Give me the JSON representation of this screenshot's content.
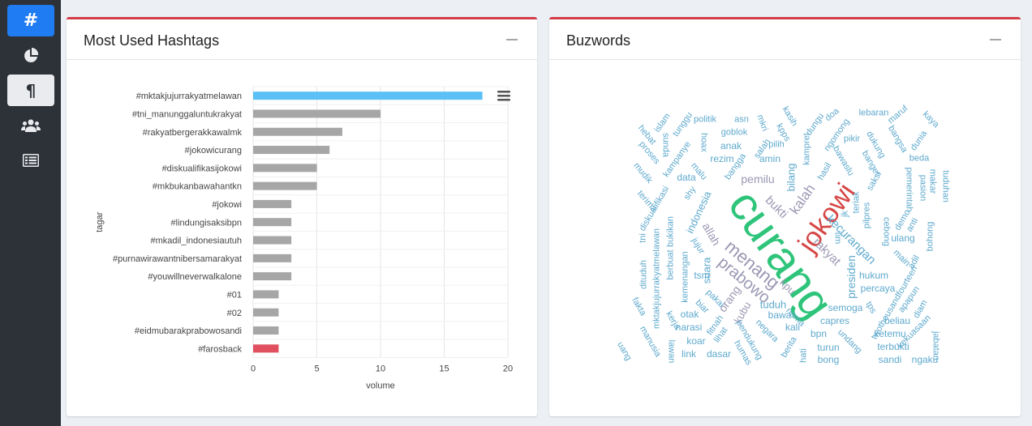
{
  "sidebar": {
    "items": [
      {
        "icon": "hashtag-icon",
        "label": "#",
        "state": "active"
      },
      {
        "icon": "pie-chart-icon",
        "state": "normal"
      },
      {
        "icon": "paragraph-icon",
        "label": "¶",
        "state": "selected"
      },
      {
        "icon": "users-icon",
        "state": "normal"
      },
      {
        "icon": "list-table-icon",
        "state": "normal"
      }
    ]
  },
  "hashtags_panel": {
    "title": "Most Used Hashtags"
  },
  "buzzwords_panel": {
    "title": "Buzwords"
  },
  "colors": {
    "bar_default": "#a7a6a6",
    "bar_highlight": "#5bc0f5",
    "bar_alert": "#e0505f",
    "header_accent": "#d23d47",
    "cloud_blue": "#5ea9cd",
    "cloud_purple": "#9a98b3",
    "cloud_green": "#2ec47a",
    "cloud_red": "#d64646"
  },
  "chart_data": {
    "type": "bar",
    "orientation": "horizontal",
    "xlabel": "volume",
    "ylabel": "tagar",
    "xlim": [
      0,
      20
    ],
    "xticks": [
      0,
      5,
      10,
      15,
      20
    ],
    "grid": true,
    "categories": [
      "#mktakjujurrakyatmelawan",
      "#tni_manunggaluntukrakyat",
      "#rakyatbergerakkawalmk",
      "#jokowicurang",
      "#diskualifikasijokowi",
      "#mkbukanbawahantkn",
      "#jokowi",
      "#lindungisaksibpn",
      "#mkadil_indonesiautuh",
      "#purnawirawantnibersamarakyat",
      "#youwillneverwalkalone",
      "#01",
      "#02",
      "#eidmubarakprabowosandi",
      "#farosback"
    ],
    "values": [
      18,
      10,
      7,
      6,
      5,
      5,
      3,
      3,
      3,
      3,
      3,
      2,
      2,
      2,
      2
    ],
    "bar_colors": [
      "highlight",
      "default",
      "default",
      "default",
      "default",
      "default",
      "default",
      "default",
      "default",
      "default",
      "default",
      "default",
      "default",
      "default",
      "alert"
    ]
  },
  "wordcloud": {
    "words": [
      {
        "text": "curang",
        "size": 58,
        "color": "green",
        "rot": 55
      },
      {
        "text": "jokowi",
        "size": 34,
        "color": "red",
        "rot": -55
      },
      {
        "text": "menang",
        "size": 22,
        "color": "purple",
        "rot": 40
      },
      {
        "text": "prabowo",
        "size": 20,
        "color": "purple",
        "rot": 40
      },
      {
        "text": "kalah",
        "size": 17,
        "color": "purple",
        "rot": -55
      },
      {
        "text": "bukti",
        "size": 15,
        "color": "purple",
        "rot": 45
      },
      {
        "text": "kecurangan",
        "size": 15,
        "color": "blue",
        "rot": 45
      },
      {
        "text": "rakyat",
        "size": 15,
        "color": "purple",
        "rot": 45
      },
      {
        "text": "pemilu",
        "size": 14,
        "color": "purple",
        "rot": 0
      },
      {
        "text": "presiden",
        "size": 14,
        "color": "blue",
        "rot": -90
      },
      {
        "text": "kpu",
        "size": 13,
        "color": "purple",
        "rot": 45
      },
      {
        "text": "orang",
        "size": 14,
        "color": "purple",
        "rot": -55
      },
      {
        "text": "allah",
        "size": 14,
        "color": "purple",
        "rot": 60
      },
      {
        "text": "indonesia",
        "size": 13,
        "color": "blue",
        "rot": -65
      },
      {
        "text": "suara",
        "size": 13,
        "color": "blue",
        "rot": -90
      },
      {
        "text": "bilang",
        "size": 13,
        "color": "blue",
        "rot": -90
      },
      {
        "text": "tuduh",
        "size": 13,
        "color": "blue",
        "rot": 0
      },
      {
        "text": "kubu",
        "size": 13,
        "color": "purple",
        "rot": -60
      },
      {
        "text": "hukum",
        "size": 12,
        "color": "blue",
        "rot": 0
      },
      {
        "text": "ulang",
        "size": 12,
        "color": "blue",
        "rot": 0
      },
      {
        "text": "semoga",
        "size": 12,
        "color": "blue",
        "rot": 0
      },
      {
        "text": "capres",
        "size": 12,
        "color": "blue",
        "rot": 0
      },
      {
        "text": "percaya",
        "size": 12,
        "color": "blue",
        "rot": 0
      },
      {
        "text": "bawa",
        "size": 12,
        "color": "blue",
        "rot": 0
      },
      {
        "text": "kali",
        "size": 12,
        "color": "blue",
        "rot": 0
      },
      {
        "text": "bpn",
        "size": 12,
        "color": "blue",
        "rot": 0
      },
      {
        "text": "turun",
        "size": 12,
        "color": "blue",
        "rot": 0
      },
      {
        "text": "bong",
        "size": 12,
        "color": "blue",
        "rot": 0
      },
      {
        "text": "beliau",
        "size": 12,
        "color": "blue",
        "rot": 0
      },
      {
        "text": "ketemu",
        "size": 12,
        "color": "blue",
        "rot": 0
      },
      {
        "text": "terbukti",
        "size": 12,
        "color": "blue",
        "rot": 0
      },
      {
        "text": "sandi",
        "size": 12,
        "color": "blue",
        "rot": 0
      },
      {
        "text": "ngaku",
        "size": 12,
        "color": "blue",
        "rot": 0
      },
      {
        "text": "narasi",
        "size": 12,
        "color": "blue",
        "rot": 0
      },
      {
        "text": "koar",
        "size": 12,
        "color": "blue",
        "rot": 0
      },
      {
        "text": "link",
        "size": 12,
        "color": "blue",
        "rot": 0
      },
      {
        "text": "dasar",
        "size": 12,
        "color": "blue",
        "rot": 0
      },
      {
        "text": "otak",
        "size": 12,
        "color": "blue",
        "rot": 0
      },
      {
        "text": "tsm",
        "size": 12,
        "color": "blue",
        "rot": 0
      },
      {
        "text": "data",
        "size": 12,
        "color": "blue",
        "rot": 0
      },
      {
        "text": "rezim",
        "size": 12,
        "color": "blue",
        "rot": 0
      },
      {
        "text": "amin",
        "size": 12,
        "color": "blue",
        "rot": 0
      },
      {
        "text": "anak",
        "size": 12,
        "color": "blue",
        "rot": 0
      },
      {
        "text": "goblok",
        "size": 11,
        "color": "blue",
        "rot": 0
      },
      {
        "text": "politik",
        "size": 11,
        "color": "blue",
        "rot": 0
      },
      {
        "text": "asn",
        "size": 11,
        "color": "blue",
        "rot": 0
      },
      {
        "text": "pilih",
        "size": 11,
        "color": "blue",
        "rot": 0
      },
      {
        "text": "lebaran",
        "size": 11,
        "color": "blue",
        "rot": 0
      },
      {
        "text": "beda",
        "size": 11,
        "color": "blue",
        "rot": 0
      },
      {
        "text": "pikir",
        "size": 11,
        "color": "blue",
        "rot": 0
      },
      {
        "text": "kampret",
        "size": 11,
        "color": "blue",
        "rot": -90
      },
      {
        "text": "hasil",
        "size": 11,
        "color": "blue",
        "rot": -60
      },
      {
        "text": "saksi",
        "size": 11,
        "color": "blue",
        "rot": -60
      },
      {
        "text": "teriak",
        "size": 11,
        "color": "blue",
        "rot": -90
      },
      {
        "text": "pilpres",
        "size": 11,
        "color": "blue",
        "rot": -90
      },
      {
        "text": "bangsa",
        "size": 11,
        "color": "blue",
        "rot": 60
      },
      {
        "text": "dukung",
        "size": 11,
        "color": "blue",
        "rot": 60
      },
      {
        "text": "bawaslu",
        "size": 11,
        "color": "blue",
        "rot": 60
      },
      {
        "text": "banget",
        "size": 11,
        "color": "blue",
        "rot": 60
      },
      {
        "text": "ngomong",
        "size": 11,
        "color": "blue",
        "rot": -55
      },
      {
        "text": "dungu",
        "size": 11,
        "color": "blue",
        "rot": -55
      },
      {
        "text": "doa",
        "size": 11,
        "color": "blue",
        "rot": -40
      },
      {
        "text": "maruf",
        "size": 11,
        "color": "blue",
        "rot": -40
      },
      {
        "text": "dunia",
        "size": 11,
        "color": "blue",
        "rot": -55
      },
      {
        "text": "kaya",
        "size": 11,
        "color": "blue",
        "rot": 45
      },
      {
        "text": "kasih",
        "size": 11,
        "color": "blue",
        "rot": 60
      },
      {
        "text": "kpps",
        "size": 11,
        "color": "blue",
        "rot": 60
      },
      {
        "text": "salah",
        "size": 11,
        "color": "blue",
        "rot": -55
      },
      {
        "text": "mkri",
        "size": 11,
        "color": "blue",
        "rot": 70
      },
      {
        "text": "hoax",
        "size": 11,
        "color": "blue",
        "rot": 90
      },
      {
        "text": "bangga",
        "size": 11,
        "color": "blue",
        "rot": -55
      },
      {
        "text": "malu",
        "size": 11,
        "color": "blue",
        "rot": 50
      },
      {
        "text": "kampanye",
        "size": 11,
        "color": "blue",
        "rot": -55
      },
      {
        "text": "tunggu",
        "size": 11,
        "color": "blue",
        "rot": -55
      },
      {
        "text": "islam",
        "size": 11,
        "color": "blue",
        "rot": -55
      },
      {
        "text": "hebat",
        "size": 11,
        "color": "blue",
        "rot": 50
      },
      {
        "text": "sunda",
        "size": 11,
        "color": "blue",
        "rot": 90
      },
      {
        "text": "proses",
        "size": 11,
        "color": "blue",
        "rot": 50
      },
      {
        "text": "mudik",
        "size": 11,
        "color": "blue",
        "rot": 50
      },
      {
        "text": "terima",
        "size": 11,
        "color": "blue",
        "rot": 50
      },
      {
        "text": "shy",
        "size": 11,
        "color": "blue",
        "rot": -55
      },
      {
        "text": "diskualifikasi",
        "size": 11,
        "color": "blue",
        "rot": -60
      },
      {
        "text": "bukikan",
        "size": 11,
        "color": "blue",
        "rot": -90
      },
      {
        "text": "jujur",
        "size": 11,
        "color": "blue",
        "rot": 60
      },
      {
        "text": "tni",
        "size": 11,
        "color": "blue",
        "rot": -90
      },
      {
        "text": "berbuat",
        "size": 11,
        "color": "blue",
        "rot": -90
      },
      {
        "text": "mktakjujurrakyatmelawan",
        "size": 11,
        "color": "blue",
        "rot": -90
      },
      {
        "text": "kemenangan",
        "size": 11,
        "color": "blue",
        "rot": -90
      },
      {
        "text": "dituduh",
        "size": 11,
        "color": "blue",
        "rot": -90
      },
      {
        "text": "pakai",
        "size": 11,
        "color": "blue",
        "rot": 45
      },
      {
        "text": "biar",
        "size": 11,
        "color": "blue",
        "rot": 45
      },
      {
        "text": "kerja",
        "size": 11,
        "color": "blue",
        "rot": 60
      },
      {
        "text": "fakta",
        "size": 11,
        "color": "blue",
        "rot": 60
      },
      {
        "text": "fitnah",
        "size": 11,
        "color": "blue",
        "rot": -55
      },
      {
        "text": "lihat",
        "size": 11,
        "color": "blue",
        "rot": -55
      },
      {
        "text": "pendukung",
        "size": 11,
        "color": "blue",
        "rot": 60
      },
      {
        "text": "humas",
        "size": 11,
        "color": "blue",
        "rot": 60
      },
      {
        "text": "manusia",
        "size": 11,
        "color": "blue",
        "rot": 60
      },
      {
        "text": "uang",
        "size": 11,
        "color": "blue",
        "rot": 60
      },
      {
        "text": "lawan",
        "size": 11,
        "color": "blue",
        "rot": 90
      },
      {
        "text": "negara",
        "size": 11,
        "color": "blue",
        "rot": 45
      },
      {
        "text": "nama",
        "size": 11,
        "color": "blue",
        "rot": 45
      },
      {
        "text": "berita",
        "size": 11,
        "color": "blue",
        "rot": -60
      },
      {
        "text": "hati",
        "size": 11,
        "color": "blue",
        "rot": -90
      },
      {
        "text": "undang",
        "size": 11,
        "color": "blue",
        "rot": 45
      },
      {
        "text": "tps",
        "size": 11,
        "color": "blue",
        "rot": 60
      },
      {
        "text": "twothousandfourteen",
        "size": 11,
        "color": "blue",
        "rot": -60
      },
      {
        "text": "apapun",
        "size": 11,
        "color": "blue",
        "rot": -55
      },
      {
        "text": "diam",
        "size": 11,
        "color": "blue",
        "rot": -60
      },
      {
        "text": "kekuasaan",
        "size": 11,
        "color": "blue",
        "rot": -45
      },
      {
        "text": "jabatan",
        "size": 11,
        "color": "blue",
        "rot": 90
      },
      {
        "text": "adil",
        "size": 11,
        "color": "blue",
        "rot": -60
      },
      {
        "text": "main",
        "size": 11,
        "color": "blue",
        "rot": 45
      },
      {
        "text": "bohong",
        "size": 11,
        "color": "blue",
        "rot": -90
      },
      {
        "text": "anti",
        "size": 11,
        "color": "blue",
        "rot": -60
      },
      {
        "text": "demo",
        "size": 11,
        "color": "blue",
        "rot": -60
      },
      {
        "text": "cebong",
        "size": 11,
        "color": "blue",
        "rot": 90
      },
      {
        "text": "jk",
        "size": 11,
        "color": "blue",
        "rot": -90
      },
      {
        "text": "tim",
        "size": 11,
        "color": "blue",
        "rot": 90
      },
      {
        "text": "pasion",
        "size": 11,
        "color": "blue",
        "rot": 90
      },
      {
        "text": "pemerintah",
        "size": 11,
        "color": "blue",
        "rot": 90
      },
      {
        "text": "makar",
        "size": 11,
        "color": "blue",
        "rot": 90
      },
      {
        "text": "tuduhan",
        "size": 11,
        "color": "blue",
        "rot": 90
      }
    ]
  }
}
